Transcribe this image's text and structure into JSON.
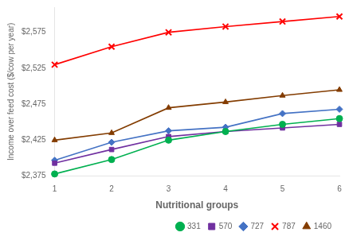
{
  "chart_data": {
    "type": "line",
    "x": [
      1,
      2,
      3,
      4,
      5,
      6
    ],
    "series": [
      {
        "name": "331",
        "color": "#00b050",
        "marker": "circle",
        "values": [
          2378,
          2398,
          2425,
          2437,
          2447,
          2455
        ]
      },
      {
        "name": "570",
        "color": "#7030a0",
        "marker": "square",
        "values": [
          2393,
          2412,
          2430,
          2437,
          2442,
          2447
        ]
      },
      {
        "name": "727",
        "color": "#4472c4",
        "marker": "diamond",
        "values": [
          2397,
          2422,
          2438,
          2443,
          2462,
          2468
        ]
      },
      {
        "name": "787",
        "color": "#ff0000",
        "marker": "x",
        "values": [
          2530,
          2555,
          2575,
          2583,
          2590,
          2597
        ]
      },
      {
        "name": "1460",
        "color": "#833c00",
        "marker": "triangle",
        "values": [
          2425,
          2435,
          2470,
          2478,
          2487,
          2495
        ]
      }
    ],
    "xlabel": "Nutritional groups",
    "ylabel": "Income over feed cost ($/cow per year)",
    "xlim": [
      1,
      6
    ],
    "xticks": [
      1,
      2,
      3,
      4,
      5,
      6
    ],
    "ylim": [
      2375,
      2610
    ],
    "yticks": [
      {
        "value": 2375,
        "label": "$2,375"
      },
      {
        "value": 2425,
        "label": "$2,425"
      },
      {
        "value": 2475,
        "label": "$2,475"
      },
      {
        "value": 2525,
        "label": "$2,525"
      },
      {
        "value": 2575,
        "label": "$2,575"
      }
    ],
    "grid": false,
    "legend": "lower right"
  }
}
